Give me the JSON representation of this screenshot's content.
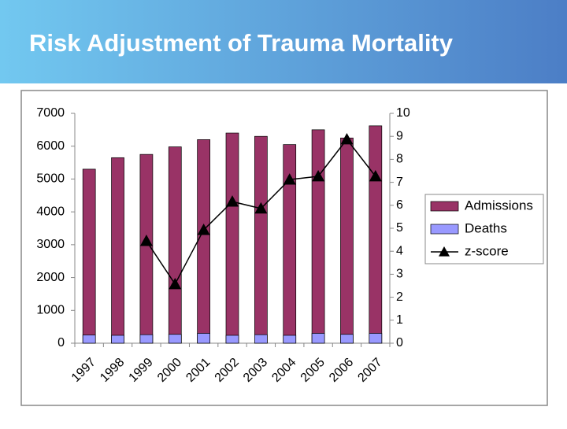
{
  "chart_data": {
    "type": "bar",
    "title": "Risk Adjustment of Trauma Mortality",
    "categories": [
      "1997",
      "1998",
      "1999",
      "2000",
      "2001",
      "2002",
      "2003",
      "2004",
      "2005",
      "2006",
      "2007"
    ],
    "series": [
      {
        "name": "Admissions",
        "color": "#993366",
        "values": [
          5300,
          5650,
          5750,
          5980,
          6200,
          6400,
          6300,
          6050,
          6500,
          6250,
          6620
        ]
      },
      {
        "name": "Deaths",
        "color": "#9999ff",
        "values": [
          250,
          240,
          260,
          270,
          300,
          240,
          260,
          240,
          300,
          270,
          300
        ]
      },
      {
        "name": "z-score",
        "color": "#000000",
        "type": "line",
        "axis": "y2",
        "values": [
          null,
          null,
          4.45,
          2.57,
          4.93,
          6.16,
          5.86,
          7.12,
          7.26,
          8.87,
          7.26
        ]
      }
    ],
    "ylim": [
      0,
      7000
    ],
    "yticks": [
      0,
      1000,
      2000,
      3000,
      4000,
      5000,
      6000,
      7000
    ],
    "y2lim": [
      0,
      10
    ],
    "y2ticks": [
      0,
      1,
      2,
      3,
      4,
      5,
      6,
      7,
      8,
      9,
      10
    ],
    "grid": false,
    "legend": "right"
  }
}
